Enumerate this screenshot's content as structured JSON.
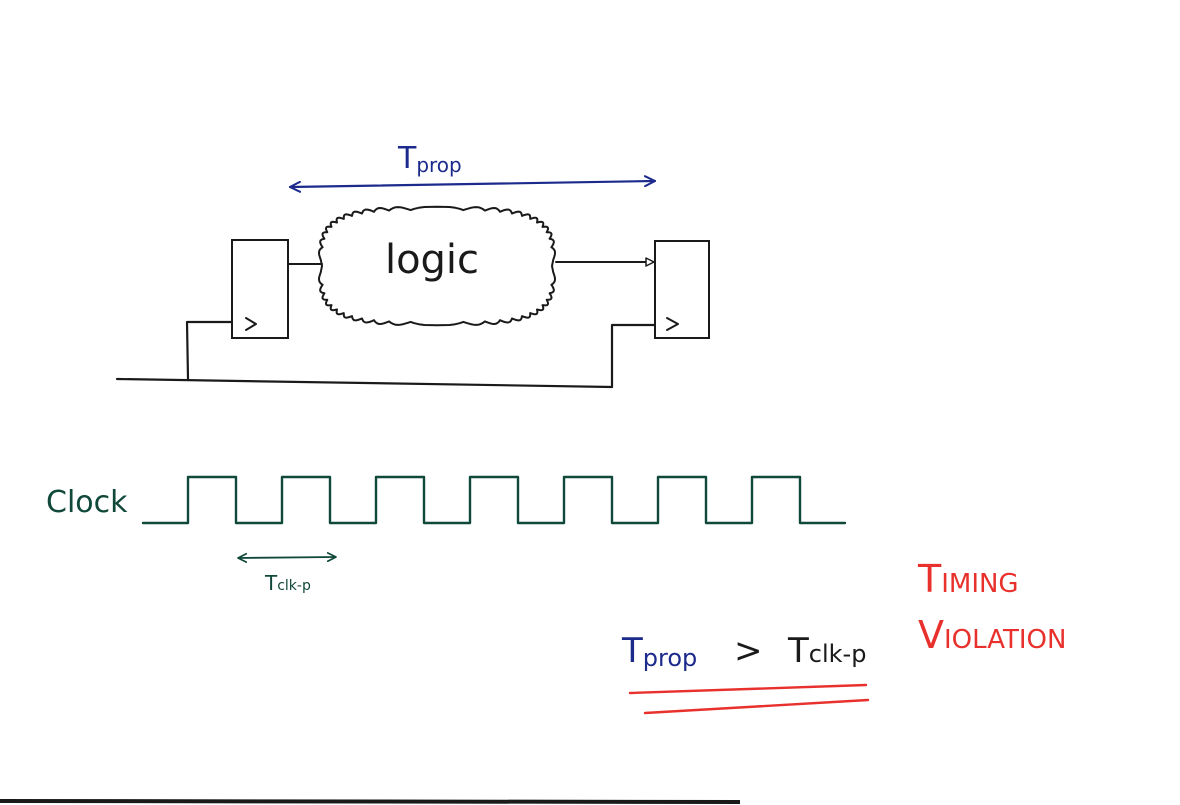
{
  "diagram": {
    "logic_label": "logic",
    "tprop_top": {
      "main": "T",
      "sub": "prop"
    },
    "clock_label": "Clock",
    "tclk_label": {
      "main": "T",
      "sub": "clk-p"
    },
    "inequality": {
      "left_main": "T",
      "left_sub": "prop",
      "operator": ">",
      "right_main": "T",
      "right_sub": "clk-p"
    },
    "violation": {
      "line1_first": "T",
      "line1_rest": "IMING",
      "line2_first": "V",
      "line2_rest": "IOLATION"
    },
    "clock_pulses": 7,
    "colors": {
      "ink_black": "#1a1a1a",
      "ink_blue": "#1c2a8c",
      "ink_green": "#10483a",
      "ink_red": "#e8302c",
      "paper": "#ffffff"
    }
  }
}
